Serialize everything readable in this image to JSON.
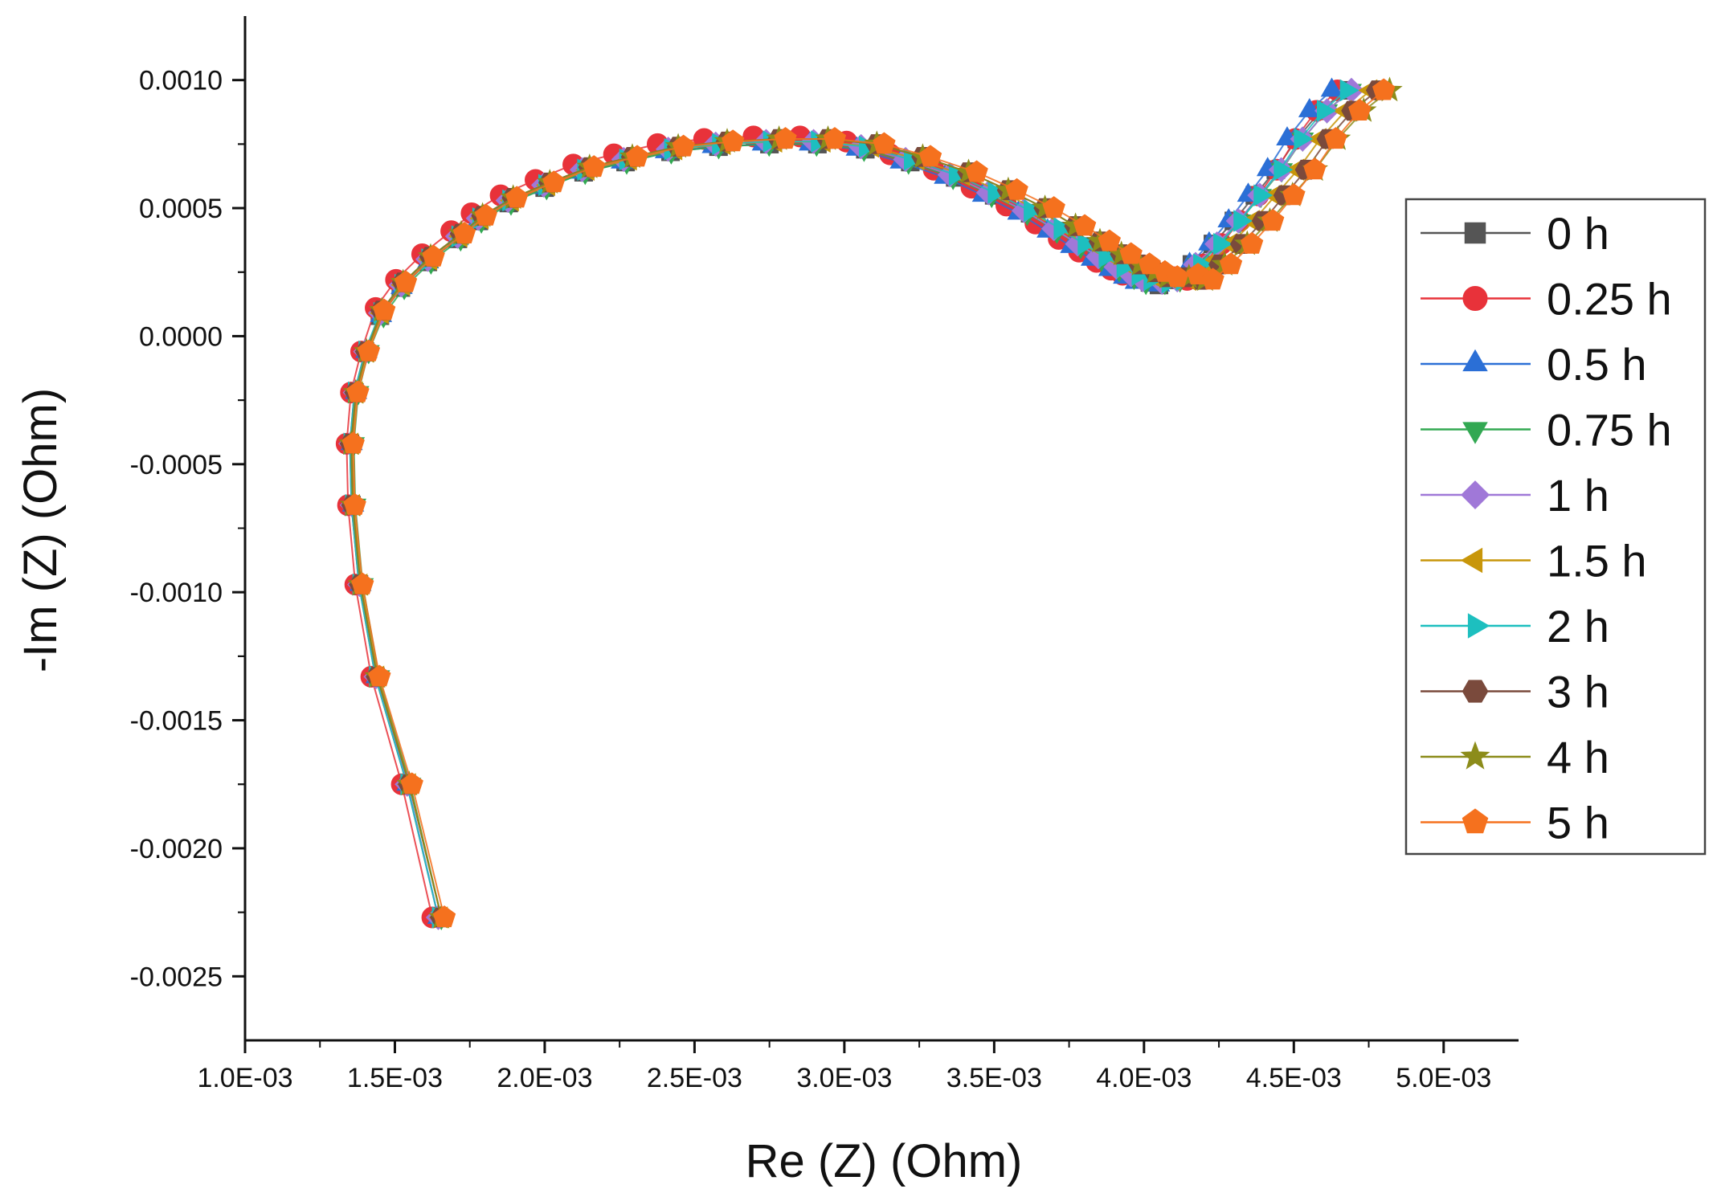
{
  "chart_data": {
    "type": "scatter",
    "title": "",
    "xlabel": "Re (Z) (Ohm)",
    "ylabel": "-Im (Z) (Ohm)",
    "xlim": [
      0.001,
      0.00525
    ],
    "ylim": [
      -0.00275,
      0.00125
    ],
    "xticks": [
      0.001,
      0.0015,
      0.002,
      0.0025,
      0.003,
      0.0035,
      0.004,
      0.0045,
      0.005
    ],
    "xtick_labels": [
      "1.0E-03",
      "1.5E-03",
      "2.0E-03",
      "2.5E-03",
      "3.0E-03",
      "3.5E-03",
      "4.0E-03",
      "4.5E-03",
      "5.0E-03"
    ],
    "yticks": [
      0.001,
      0.0005,
      0.0,
      -0.0005,
      -0.001,
      -0.0015,
      -0.002,
      -0.0025
    ],
    "ytick_labels": [
      "0.0010",
      "0.0005",
      "0.0000",
      "-0.0005",
      "-0.0010",
      "-0.0015",
      "-0.0020",
      "-0.0025"
    ],
    "grid": false,
    "legend_position": "right",
    "base_curve": {
      "x": [
        0.001645,
        0.00154,
        0.001435,
        0.00138,
        0.001355,
        0.00135,
        0.001365,
        0.0014,
        0.00145,
        0.00152,
        0.00161,
        0.00171,
        0.00178,
        0.00188,
        0.002,
        0.00213,
        0.00227,
        0.00242,
        0.00258,
        0.00275,
        0.00291,
        0.00307,
        0.00322,
        0.00337,
        0.0035,
        0.00362,
        0.00372,
        0.0038,
        0.00387,
        0.00393,
        0.00398,
        0.00402,
        0.00405
      ],
      "y": [
        -0.00227,
        -0.00175,
        -0.00133,
        -0.00097,
        -0.00066,
        -0.00042,
        -0.00022,
        -6e-05,
        8e-05,
        0.00019,
        0.00029,
        0.00038,
        0.00045,
        0.00052,
        0.00058,
        0.00064,
        0.00068,
        0.00072,
        0.00074,
        0.00075,
        0.00075,
        0.00073,
        0.00068,
        0.00062,
        0.00055,
        0.00048,
        0.00041,
        0.00035,
        0.0003,
        0.00026,
        0.00023,
        0.00021,
        0.0002
      ]
    },
    "tail_template": {
      "dx": [
        5e-05,
        0.00011,
        0.00018,
        0.00025,
        0.00032,
        0.00039,
        0.00046,
        0.00054,
        0.00062
      ],
      "y": [
        0.00022,
        0.00028,
        0.00036,
        0.00045,
        0.00055,
        0.00065,
        0.00077,
        0.00088,
        0.00096
      ]
    },
    "series": [
      {
        "name": "0 h",
        "color": "#555555",
        "marker": "square",
        "x_shift": 0.0,
        "y_shift": 0.0,
        "x_stretch": 1.0,
        "knee_x": 0.00405,
        "knee_y": 0.0002,
        "tail_stretch": 1.0
      },
      {
        "name": "0.25 h",
        "color": "#e8323a",
        "marker": "circle",
        "x_shift": -2e-05,
        "y_shift": 3e-05,
        "x_stretch": 0.97,
        "knee_x": 0.0041,
        "knee_y": 0.00023,
        "tail_stretch": 0.88
      },
      {
        "name": "0.5 h",
        "color": "#2b6fd6",
        "marker": "triangle-up",
        "x_shift": 0.0,
        "y_shift": 0.0,
        "x_stretch": 0.98,
        "knee_x": 0.00405,
        "knee_y": 0.0002,
        "tail_stretch": 0.93
      },
      {
        "name": "0.75 h",
        "color": "#32a852",
        "marker": "triangle-down",
        "x_shift": 1e-05,
        "y_shift": 0.0,
        "x_stretch": 0.99,
        "knee_x": 0.00407,
        "knee_y": 0.00021,
        "tail_stretch": 1.0
      },
      {
        "name": "1 h",
        "color": "#a078d8",
        "marker": "diamond",
        "x_shift": 0.0,
        "y_shift": 1e-05,
        "x_stretch": 0.99,
        "knee_x": 0.00406,
        "knee_y": 0.00021,
        "tail_stretch": 1.02
      },
      {
        "name": "1.5 h",
        "color": "#c8960a",
        "marker": "triangle-left",
        "x_shift": 1e-05,
        "y_shift": 1e-05,
        "x_stretch": 1.01,
        "knee_x": 0.0041,
        "knee_y": 0.00022,
        "tail_stretch": 1.06
      },
      {
        "name": "2 h",
        "color": "#1dbfbf",
        "marker": "triangle-right",
        "x_shift": 0.0,
        "y_shift": 1e-05,
        "x_stretch": 1.0,
        "knee_x": 0.00408,
        "knee_y": 0.00021,
        "tail_stretch": 0.96
      },
      {
        "name": "3 h",
        "color": "#7a4a3c",
        "marker": "hexagon",
        "x_shift": 1e-05,
        "y_shift": 2e-05,
        "x_stretch": 1.02,
        "knee_x": 0.00414,
        "knee_y": 0.00023,
        "tail_stretch": 1.03
      },
      {
        "name": "4 h",
        "color": "#8c8c1a",
        "marker": "star",
        "x_shift": 1e-05,
        "y_shift": 2e-05,
        "x_stretch": 1.02,
        "knee_x": 0.00415,
        "knee_y": 0.00023,
        "tail_stretch": 1.08
      },
      {
        "name": "5 h",
        "color": "#f5711e",
        "marker": "pentagon",
        "x_shift": 2e-05,
        "y_shift": 2e-05,
        "x_stretch": 1.03,
        "knee_x": 0.00418,
        "knee_y": 0.00024,
        "tail_stretch": 1.0
      }
    ]
  }
}
